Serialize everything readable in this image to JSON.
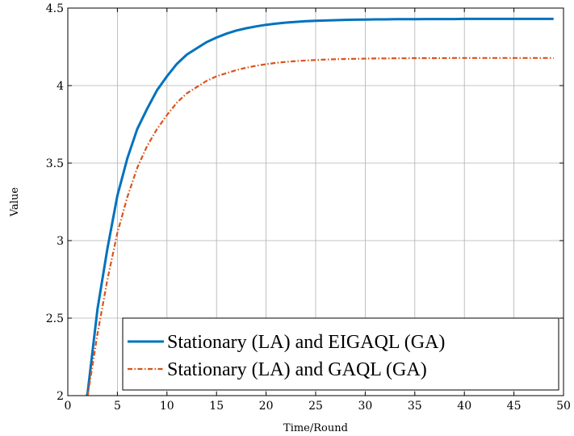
{
  "chart_data": {
    "type": "line",
    "xlabel": "Time/Round",
    "ylabel": "Value",
    "xlim": [
      0,
      50
    ],
    "ylim": [
      2,
      4.5
    ],
    "xticks": [
      0,
      5,
      10,
      15,
      20,
      25,
      30,
      35,
      40,
      45,
      50
    ],
    "yticks": [
      2,
      2.5,
      3,
      3.5,
      4,
      4.5
    ],
    "grid": true,
    "legend_position": "bottom-right",
    "series": [
      {
        "name": "Stationary (LA) and EIGAQL (GA)",
        "color": "#0072bd",
        "style": "solid",
        "x": [
          1.5,
          2,
          3,
          4,
          5,
          6,
          7,
          8,
          9,
          10,
          11,
          12,
          13,
          14,
          15,
          16,
          17,
          18,
          19,
          20,
          21,
          22,
          23,
          24,
          25,
          26,
          27,
          28,
          29,
          30,
          31,
          32,
          33,
          34,
          35,
          36,
          37,
          38,
          39,
          40,
          41,
          42,
          43,
          44,
          45,
          46,
          47,
          48,
          49
        ],
        "values": [
          1.88,
          2.02,
          2.56,
          2.95,
          3.29,
          3.53,
          3.72,
          3.85,
          3.97,
          4.06,
          4.14,
          4.2,
          4.24,
          4.28,
          4.31,
          4.335,
          4.355,
          4.37,
          4.382,
          4.392,
          4.4,
          4.406,
          4.411,
          4.415,
          4.418,
          4.42,
          4.422,
          4.424,
          4.425,
          4.426,
          4.427,
          4.427,
          4.428,
          4.428,
          4.428,
          4.429,
          4.429,
          4.429,
          4.429,
          4.43,
          4.43,
          4.43,
          4.43,
          4.43,
          4.43,
          4.43,
          4.43,
          4.43,
          4.43
        ]
      },
      {
        "name": "Stationary (LA) and GAQL (GA)",
        "color": "#d95319",
        "style": "dash-dot",
        "x": [
          2,
          3,
          4,
          5,
          6,
          7,
          8,
          9,
          10,
          11,
          12,
          13,
          14,
          15,
          16,
          17,
          18,
          19,
          20,
          21,
          22,
          23,
          24,
          25,
          26,
          27,
          28,
          29,
          30,
          31,
          32,
          33,
          34,
          35,
          36,
          37,
          38,
          39,
          40,
          41,
          42,
          43,
          44,
          45,
          46,
          47,
          48,
          49
        ],
        "values": [
          2.0,
          2.4,
          2.75,
          3.05,
          3.28,
          3.47,
          3.61,
          3.72,
          3.81,
          3.89,
          3.95,
          3.99,
          4.03,
          4.06,
          4.08,
          4.1,
          4.115,
          4.128,
          4.138,
          4.147,
          4.153,
          4.158,
          4.162,
          4.165,
          4.168,
          4.17,
          4.172,
          4.173,
          4.174,
          4.175,
          4.175,
          4.176,
          4.176,
          4.177,
          4.177,
          4.177,
          4.177,
          4.178,
          4.178,
          4.178,
          4.178,
          4.178,
          4.178,
          4.178,
          4.178,
          4.178,
          4.178,
          4.178
        ]
      }
    ]
  }
}
